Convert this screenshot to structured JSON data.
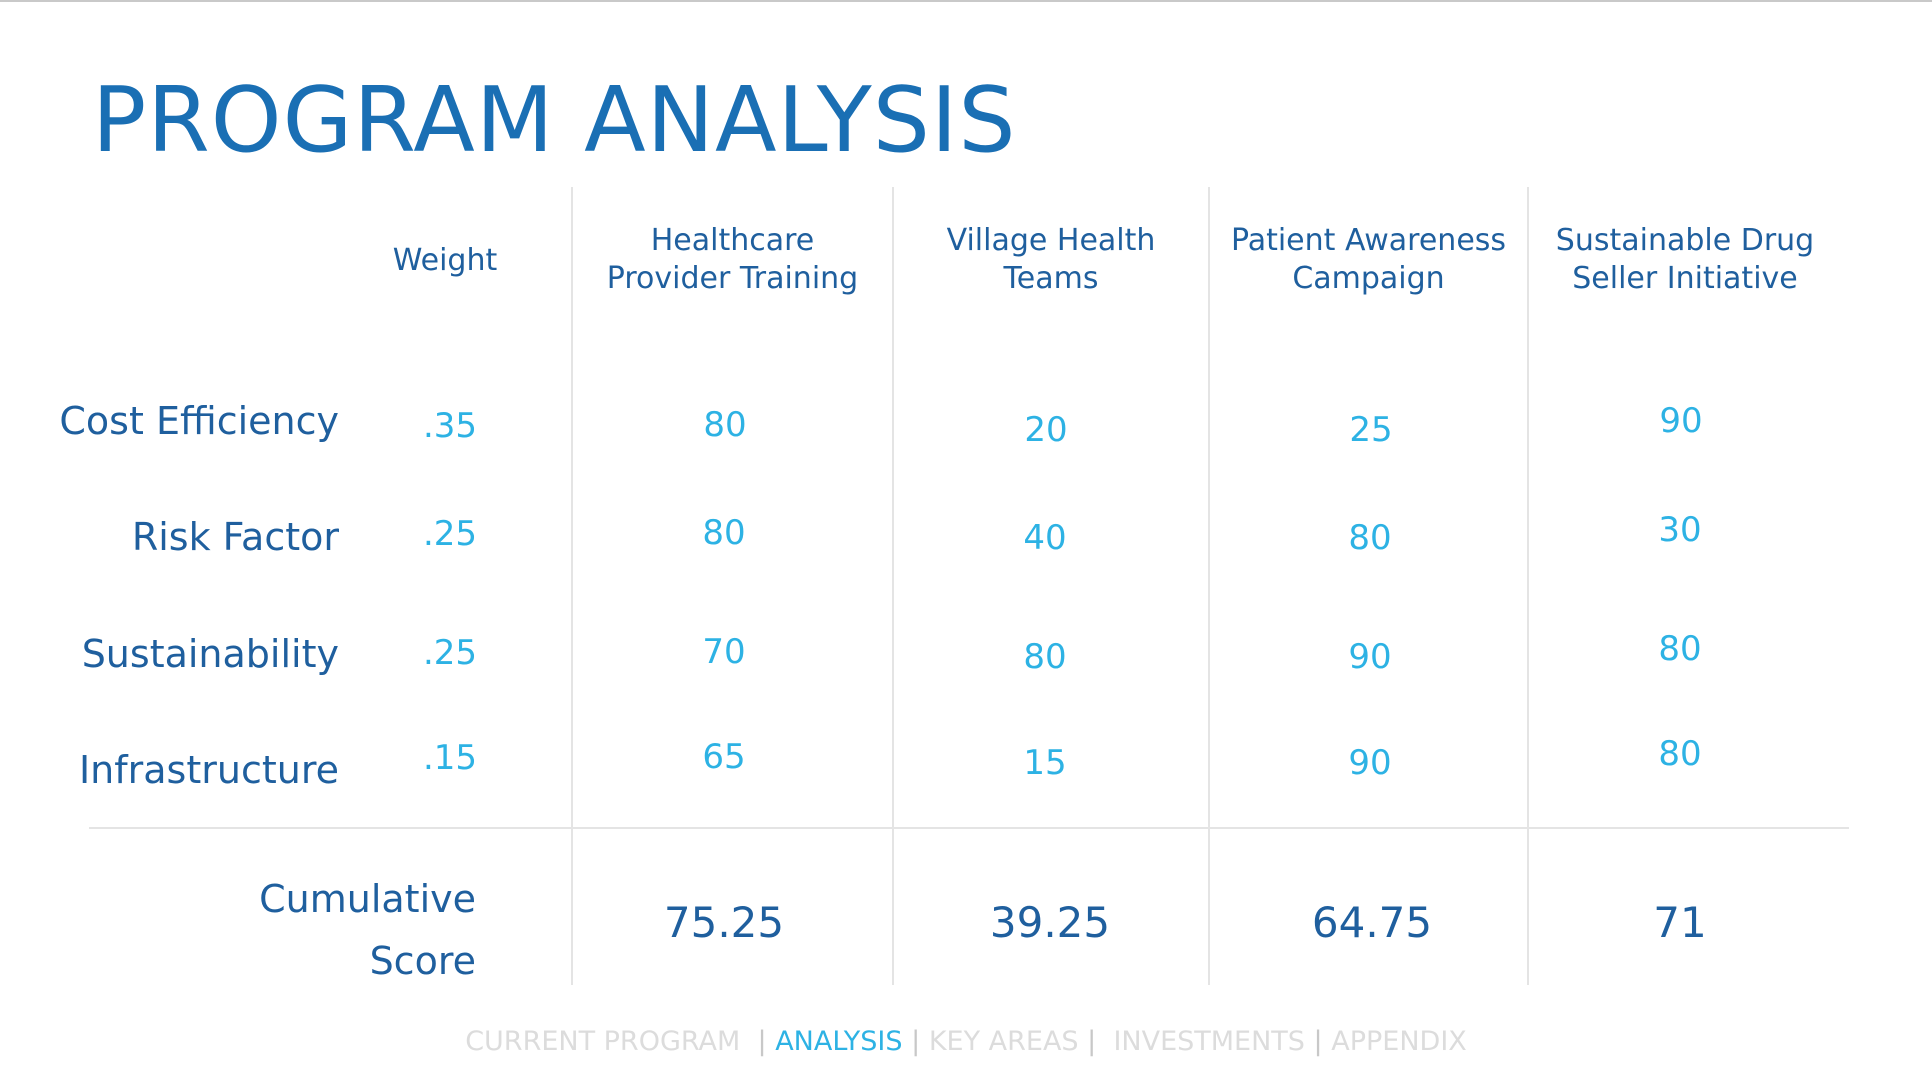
{
  "title": "PROGRAM ANALYSIS",
  "weight_header": "Weight",
  "programs": [
    {
      "line1": "Healthcare",
      "line2": "Provider Training"
    },
    {
      "line1": "Village Health",
      "line2": "Teams"
    },
    {
      "line1": "Patient Awareness",
      "line2": "Campaign"
    },
    {
      "line1": "Sustainable Drug",
      "line2": "Seller Initiative"
    }
  ],
  "rows": [
    {
      "label": "Cost Efficiency",
      "weight": ".35",
      "scores": [
        "80",
        "20",
        "25",
        "90"
      ]
    },
    {
      "label": "Risk Factor",
      "weight": ".25",
      "scores": [
        "80",
        "40",
        "80",
        "30"
      ]
    },
    {
      "label": "Sustainability",
      "weight": ".25",
      "scores": [
        "70",
        "80",
        "90",
        "80"
      ]
    },
    {
      "label": "Infrastructure",
      "weight": ".15",
      "scores": [
        "65",
        "15",
        "90",
        "80"
      ]
    }
  ],
  "cumulative": {
    "label_line1": "Cumulative",
    "label_line2": "Score",
    "scores": [
      "75.25",
      "39.25",
      "64.75",
      "71"
    ]
  },
  "nav": {
    "current_program": "CURRENT PROGRAM",
    "analysis": "ANALYSIS",
    "key_areas": "KEY AREAS",
    "investments": "INVESTMENTS",
    "appendix": "APPENDIX",
    "sep": "|"
  },
  "colors": {
    "title": "#1a6fb4",
    "label": "#1f5f9e",
    "value": "#2db2e4",
    "nav_active": "#2db2e4",
    "nav_inactive": "#dcdcdc",
    "grid": "#e4e4e4"
  }
}
